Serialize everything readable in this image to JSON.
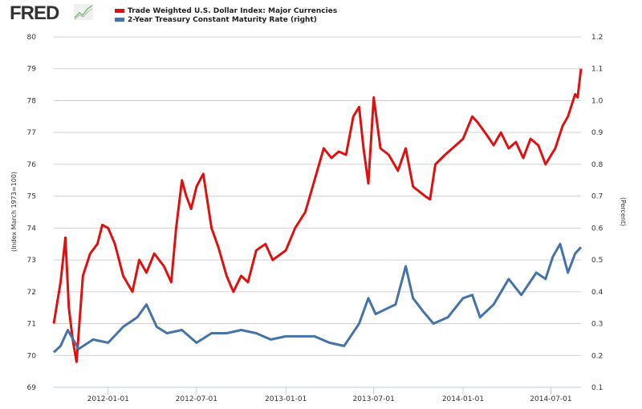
{
  "logo": {
    "text": "FRED"
  },
  "chart_data": {
    "type": "line",
    "title": "",
    "xlabel": "",
    "ylabel": "(Index March 1973=100)",
    "ylabel_right": "(Percent)",
    "xlim": [
      "2011-09-11",
      "2014-09-01"
    ],
    "ylim": [
      69,
      80
    ],
    "ylim_right": [
      0.1,
      1.2
    ],
    "yticks": [
      "69",
      "70",
      "71",
      "72",
      "73",
      "74",
      "75",
      "76",
      "77",
      "78",
      "79",
      "80"
    ],
    "yticks_right": [
      "0.1",
      "0.2",
      "0.3",
      "0.4",
      "0.5",
      "0.6",
      "0.7",
      "0.8",
      "0.9",
      "1.0",
      "1.1",
      "1.2"
    ],
    "xticks": [
      "2012-01-01",
      "2012-07-01",
      "2013-01-01",
      "2013-07-01",
      "2014-01-01",
      "2014-07-01"
    ],
    "grid": true,
    "legend_position": "top",
    "series": [
      {
        "name": "Trade Weighted U.S. Dollar Index: Major Currencies",
        "axis": "left",
        "color": "#e01010",
        "points": [
          [
            "2011-09-11",
            71
          ],
          [
            "2011-09-25",
            72.3
          ],
          [
            "2011-10-05",
            73.7
          ],
          [
            "2011-10-12",
            71.5
          ],
          [
            "2011-10-20",
            70.5
          ],
          [
            "2011-10-28",
            69.8
          ],
          [
            "2011-11-10",
            72.5
          ],
          [
            "2011-11-25",
            73.2
          ],
          [
            "2011-12-10",
            73.5
          ],
          [
            "2011-12-20",
            74.1
          ],
          [
            "2012-01-01",
            74
          ],
          [
            "2012-01-15",
            73.5
          ],
          [
            "2012-02-01",
            72.5
          ],
          [
            "2012-02-20",
            72
          ],
          [
            "2012-03-05",
            73
          ],
          [
            "2012-03-20",
            72.6
          ],
          [
            "2012-04-05",
            73.2
          ],
          [
            "2012-04-25",
            72.8
          ],
          [
            "2012-05-10",
            72.3
          ],
          [
            "2012-05-20",
            74
          ],
          [
            "2012-06-01",
            75.5
          ],
          [
            "2012-06-10",
            75
          ],
          [
            "2012-06-20",
            74.6
          ],
          [
            "2012-07-01",
            75.3
          ],
          [
            "2012-07-15",
            75.7
          ],
          [
            "2012-08-01",
            74
          ],
          [
            "2012-08-15",
            73.4
          ],
          [
            "2012-09-01",
            72.5
          ],
          [
            "2012-09-15",
            72
          ],
          [
            "2012-10-01",
            72.5
          ],
          [
            "2012-10-15",
            72.3
          ],
          [
            "2012-11-01",
            73.3
          ],
          [
            "2012-11-20",
            73.5
          ],
          [
            "2012-12-05",
            73
          ],
          [
            "2013-01-01",
            73.3
          ],
          [
            "2013-01-20",
            74
          ],
          [
            "2013-02-10",
            74.5
          ],
          [
            "2013-03-01",
            75.5
          ],
          [
            "2013-03-20",
            76.5
          ],
          [
            "2013-04-05",
            76.2
          ],
          [
            "2013-04-20",
            76.4
          ],
          [
            "2013-05-05",
            76.3
          ],
          [
            "2013-05-20",
            77.5
          ],
          [
            "2013-06-01",
            77.8
          ],
          [
            "2013-06-10",
            76.5
          ],
          [
            "2013-06-20",
            75.4
          ],
          [
            "2013-07-01",
            78.1
          ],
          [
            "2013-07-15",
            76.5
          ],
          [
            "2013-08-01",
            76.3
          ],
          [
            "2013-08-20",
            75.8
          ],
          [
            "2013-09-05",
            76.5
          ],
          [
            "2013-09-20",
            75.3
          ],
          [
            "2013-10-15",
            75
          ],
          [
            "2013-10-25",
            74.9
          ],
          [
            "2013-11-05",
            76
          ],
          [
            "2013-11-25",
            76.3
          ],
          [
            "2013-12-10",
            76.5
          ],
          [
            "2014-01-01",
            76.8
          ],
          [
            "2014-01-20",
            77.5
          ],
          [
            "2014-02-01",
            77.3
          ],
          [
            "2014-02-20",
            76.9
          ],
          [
            "2014-03-05",
            76.6
          ],
          [
            "2014-03-20",
            77
          ],
          [
            "2014-04-05",
            76.5
          ],
          [
            "2014-04-20",
            76.7
          ],
          [
            "2014-05-05",
            76.2
          ],
          [
            "2014-05-20",
            76.8
          ],
          [
            "2014-06-05",
            76.6
          ],
          [
            "2014-06-20",
            76
          ],
          [
            "2014-07-10",
            76.5
          ],
          [
            "2014-07-25",
            77.2
          ],
          [
            "2014-08-05",
            77.5
          ],
          [
            "2014-08-20",
            78.2
          ],
          [
            "2014-08-25",
            78.1
          ],
          [
            "2014-09-01",
            79
          ]
        ]
      },
      {
        "name": "2-Year Treasury Constant Maturity Rate (right)",
        "axis": "right",
        "color": "#4572a7",
        "points": [
          [
            "2011-09-11",
            0.21
          ],
          [
            "2011-09-25",
            0.23
          ],
          [
            "2011-10-10",
            0.28
          ],
          [
            "2011-11-01",
            0.22
          ],
          [
            "2011-12-01",
            0.25
          ],
          [
            "2012-01-01",
            0.24
          ],
          [
            "2012-02-01",
            0.29
          ],
          [
            "2012-03-01",
            0.32
          ],
          [
            "2012-03-20",
            0.36
          ],
          [
            "2012-04-10",
            0.29
          ],
          [
            "2012-05-01",
            0.27
          ],
          [
            "2012-06-01",
            0.28
          ],
          [
            "2012-07-01",
            0.24
          ],
          [
            "2012-08-01",
            0.27
          ],
          [
            "2012-09-01",
            0.27
          ],
          [
            "2012-10-01",
            0.28
          ],
          [
            "2012-11-01",
            0.27
          ],
          [
            "2012-12-01",
            0.25
          ],
          [
            "2013-01-01",
            0.26
          ],
          [
            "2013-02-01",
            0.26
          ],
          [
            "2013-03-01",
            0.26
          ],
          [
            "2013-04-01",
            0.24
          ],
          [
            "2013-05-01",
            0.23
          ],
          [
            "2013-06-01",
            0.3
          ],
          [
            "2013-06-20",
            0.38
          ],
          [
            "2013-07-05",
            0.33
          ],
          [
            "2013-08-01",
            0.35
          ],
          [
            "2013-08-15",
            0.36
          ],
          [
            "2013-09-05",
            0.48
          ],
          [
            "2013-09-20",
            0.38
          ],
          [
            "2013-10-10",
            0.34
          ],
          [
            "2013-11-01",
            0.3
          ],
          [
            "2013-12-01",
            0.32
          ],
          [
            "2014-01-01",
            0.38
          ],
          [
            "2014-01-20",
            0.39
          ],
          [
            "2014-02-05",
            0.32
          ],
          [
            "2014-03-05",
            0.36
          ],
          [
            "2014-04-05",
            0.44
          ],
          [
            "2014-05-01",
            0.39
          ],
          [
            "2014-06-01",
            0.46
          ],
          [
            "2014-06-20",
            0.44
          ],
          [
            "2014-07-05",
            0.51
          ],
          [
            "2014-07-20",
            0.55
          ],
          [
            "2014-08-05",
            0.46
          ],
          [
            "2014-08-20",
            0.52
          ],
          [
            "2014-09-01",
            0.54
          ]
        ]
      }
    ]
  }
}
